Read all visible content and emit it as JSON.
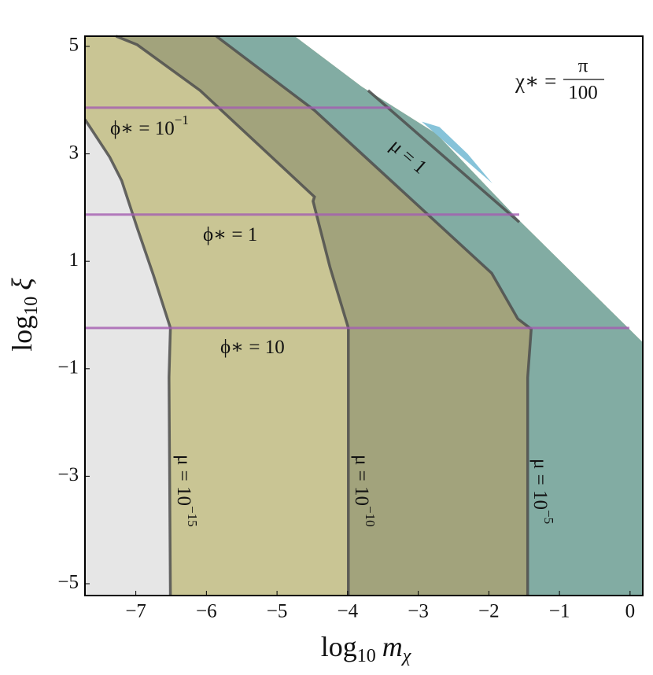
{
  "chart_data": {
    "type": "region",
    "xlabel": {
      "func": "log",
      "base": "10",
      "symbol": "m",
      "symbol_sub": "χ"
    },
    "ylabel": {
      "func": "log",
      "base": "10",
      "symbol": "ξ"
    },
    "xlim": [
      -7.72,
      0.18
    ],
    "ylim": [
      -5.22,
      5.19
    ],
    "xticks": [
      {
        "value": -7,
        "label": "−7"
      },
      {
        "value": -6,
        "label": "−6"
      },
      {
        "value": -5,
        "label": "−5"
      },
      {
        "value": -4,
        "label": "−4"
      },
      {
        "value": -3,
        "label": "−3"
      },
      {
        "value": -2,
        "label": "−2"
      },
      {
        "value": -1,
        "label": "−1"
      },
      0
    ],
    "yticks": [
      {
        "value": -5,
        "label": "−5"
      },
      {
        "value": -3,
        "label": "−3"
      },
      {
        "value": -1,
        "label": "−1"
      },
      1,
      3,
      5
    ],
    "allowed_color": "#e6e6e6",
    "boundary": {
      "x": [
        -4.75,
        -3.8,
        -2.74,
        -1.57,
        0.18
      ],
      "y": [
        5.19,
        4.25,
        3.37,
        1.76,
        -0.51
      ]
    },
    "curves": [
      {
        "color": "#4d4d4d",
        "fill": "#c9c594",
        "x": [
          -7.72,
          -7.37,
          -7.2,
          -6.98,
          -6.75,
          -6.51,
          -6.53,
          -6.51
        ],
        "y": [
          3.64,
          2.94,
          2.5,
          1.62,
          0.74,
          -0.24,
          -1.16,
          -5.22
        ]
      },
      {
        "color": "#4d4d4d",
        "fill": "#a2a37c",
        "x": [
          -7.28,
          -6.98,
          -6.09,
          -4.47,
          -4.49,
          -4.25,
          -3.99,
          -3.99
        ],
        "y": [
          5.19,
          5.03,
          4.18,
          2.2,
          2.12,
          0.89,
          -0.24,
          -5.22
        ]
      },
      {
        "color": "#4d4d4d",
        "fill": "#82aca3",
        "x": [
          -5.86,
          -4.47,
          -1.96,
          -1.59,
          -1.4,
          -1.45,
          -1.45
        ],
        "y": [
          5.19,
          3.81,
          0.78,
          -0.07,
          -0.26,
          -1.16,
          -5.22
        ]
      }
    ],
    "sliver": {
      "color": "#86c3d9",
      "x": [
        -2.95,
        -2.7,
        -2.3,
        -1.95,
        -2.3
      ],
      "y": [
        3.6,
        3.5,
        3.0,
        2.45,
        2.85
      ]
    },
    "mu1_line": {
      "color": "#4d4d4d",
      "x": [
        -3.71,
        -1.57
      ],
      "y": [
        4.18,
        1.73
      ]
    },
    "hlines": [
      {
        "y": 3.86,
        "xmax": -3.39
      },
      {
        "y": 1.87,
        "xmax": -1.57
      },
      {
        "y": -0.24,
        "xmax": -0.01
      }
    ],
    "hline_color": "#a45cb0",
    "annotations": [
      {
        "text": "ϕ∗ = 10",
        "sup": "−1"
      },
      {
        "text": "ϕ∗ = 1"
      },
      {
        "text": "ϕ∗ = 10"
      },
      {
        "text": "μ = 1"
      },
      {
        "text": "μ = 10",
        "sup": "−15"
      },
      {
        "text": "μ = 10",
        "sup": "−10"
      },
      {
        "text": "μ = 10",
        "sup": "−5"
      }
    ],
    "chi_label": {
      "lhs": "χ∗ =",
      "num": "π",
      "den": "100"
    }
  }
}
